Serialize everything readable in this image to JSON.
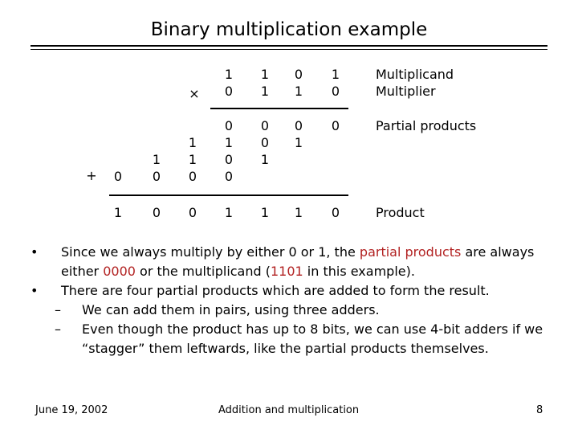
{
  "title": "Binary multiplication example",
  "multiplication": {
    "times_sign": "×",
    "plus_sign": "+",
    "multiplicand_bits": [
      "1",
      "1",
      "0",
      "1"
    ],
    "multiplier_bits": [
      "0",
      "1",
      "1",
      "0"
    ],
    "partial_product_columns": [
      [
        "0"
      ],
      [
        "1",
        "0"
      ],
      [
        "1",
        "1",
        "0"
      ],
      [
        "0",
        "1",
        "0",
        "0"
      ],
      [
        "0",
        "0",
        "1"
      ],
      [
        "0",
        "1"
      ],
      [
        "0"
      ]
    ],
    "product_bits": [
      "1",
      "0",
      "0",
      "1",
      "1",
      "1",
      "0"
    ],
    "labels": {
      "multiplicand": "Multiplicand",
      "multiplier": "Multiplier",
      "partial_products": "Partial products",
      "product": "Product"
    }
  },
  "bullets": [
    {
      "level": 1,
      "marker": "•",
      "segments": [
        {
          "text": "Since we always multiply by either 0 or 1, the ",
          "highlight": false
        },
        {
          "text": "partial products",
          "highlight": true
        },
        {
          "text": " are always either ",
          "highlight": false
        },
        {
          "text": "0000",
          "highlight": true
        },
        {
          "text": " or the multiplicand (",
          "highlight": false
        },
        {
          "text": "1101",
          "highlight": true
        },
        {
          "text": " in this example).",
          "highlight": false
        }
      ]
    },
    {
      "level": 1,
      "marker": "•",
      "segments": [
        {
          "text": "There are four partial products which are added to form the result.",
          "highlight": false
        }
      ]
    },
    {
      "level": 2,
      "marker": "–",
      "segments": [
        {
          "text": "We can add them in pairs, using three adders.",
          "highlight": false
        }
      ]
    },
    {
      "level": 2,
      "marker": "–",
      "segments": [
        {
          "text": "Even though the product has up to 8 bits, we can use 4-bit adders if we “stagger” them leftwards, like the partial products themselves.",
          "highlight": false
        }
      ]
    }
  ],
  "colors": {
    "highlight": "#b22222",
    "text": "#000000",
    "background": "#ffffff"
  },
  "footer": {
    "date": "June 19, 2002",
    "subject": "Addition and multiplication",
    "page": "8"
  }
}
